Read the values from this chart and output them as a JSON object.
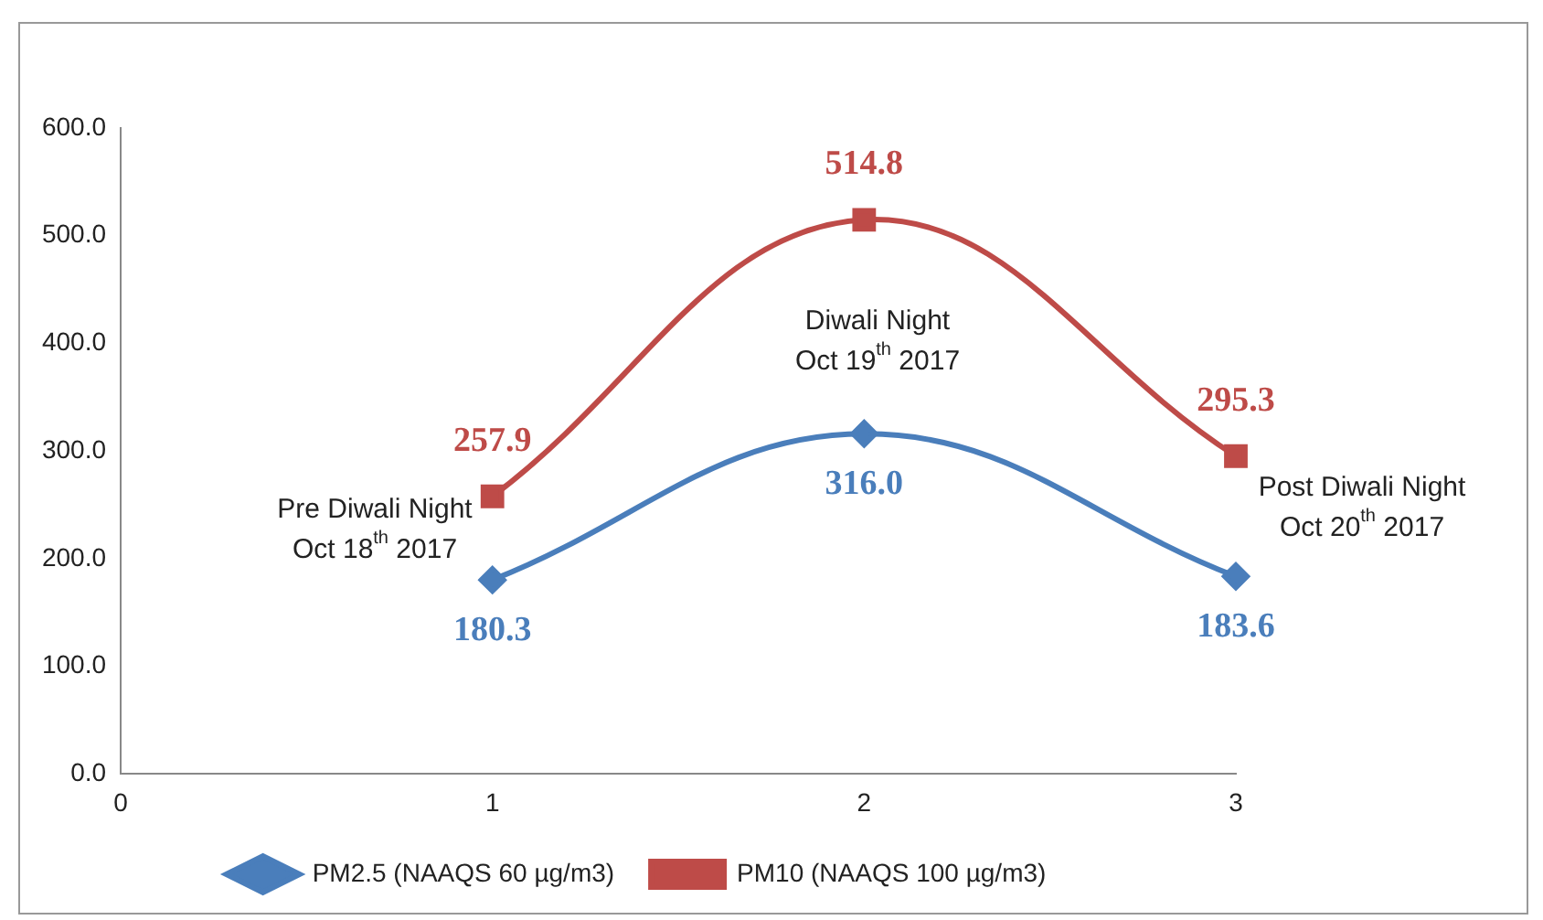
{
  "chart_data": {
    "type": "line",
    "series": [
      {
        "name": "PM2.5 (NAAQS 60 µg/m3)",
        "color": "#4a7ebb",
        "marker": "diamond",
        "x": [
          1,
          2,
          3
        ],
        "values": [
          180.3,
          316.0,
          183.6
        ],
        "value_labels": [
          "180.3",
          "316.0",
          "183.6"
        ]
      },
      {
        "name": "PM10 (NAAQS 100 µg/m3)",
        "color": "#be4b48",
        "marker": "square",
        "x": [
          1,
          2,
          3
        ],
        "values": [
          257.9,
          514.8,
          295.3
        ],
        "value_labels": [
          "257.9",
          "514.8",
          "295.3"
        ]
      }
    ],
    "xlim": [
      0,
      3
    ],
    "xticks": [
      0,
      1,
      2,
      3
    ],
    "ylim": [
      0,
      600
    ],
    "yticks": [
      {
        "value": 0,
        "label": "0.0"
      },
      {
        "value": 100,
        "label": "100.0"
      },
      {
        "value": 200,
        "label": "200.0"
      },
      {
        "value": 300,
        "label": "300.0"
      },
      {
        "value": 400,
        "label": "400.0"
      },
      {
        "value": 500,
        "label": "500.0"
      },
      {
        "value": 600,
        "label": "600.0"
      }
    ],
    "annotations": [
      "Pre Diwali Night\nOct 18$^{th}$ 2017",
      "Diwali Night\nOct 19$^{th}$ 2017",
      "Post Diwali Night\nOct 20$^{th}$ 2017"
    ],
    "grid": false,
    "legend": "bottom"
  }
}
